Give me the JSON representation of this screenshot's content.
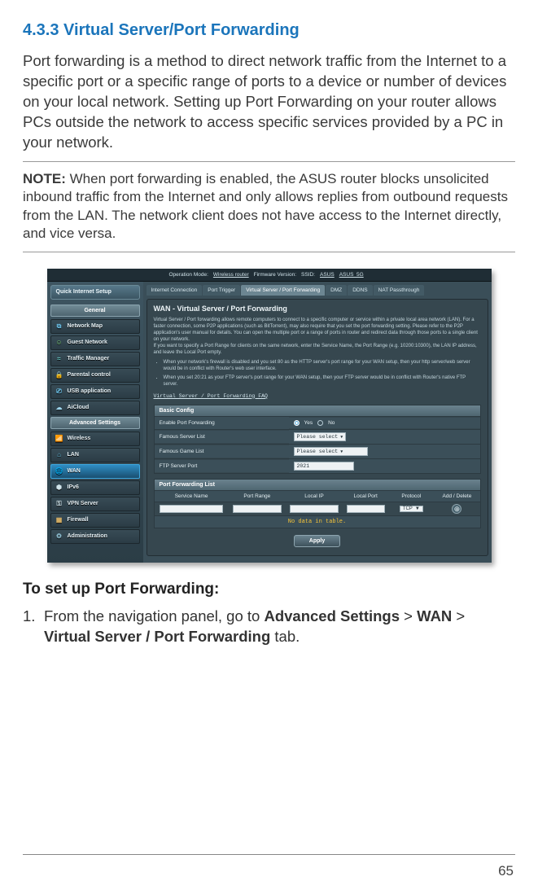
{
  "section": {
    "number": "4.3.3",
    "title": "Virtual Server/Port Forwarding"
  },
  "intro": "Port forwarding is a method to direct network traffic from the Internet to a specific port or a specific range of ports to a device or number of devices on your local network. Setting up Port Forwarding on your router allows PCs outside the network to access specific services provided by a PC in your network.",
  "note": {
    "label": "NOTE:",
    "text": " When port forwarding is enabled, the ASUS router blocks unsolicited inbound traffic from the Internet and only allows replies from outbound requests from the LAN. The network client does not have access to the Internet directly, and vice versa."
  },
  "screenshot": {
    "topbar": {
      "opmode_label": "Operation Mode:",
      "opmode_value": "Wireless router",
      "fw_label": "Firmware Version:",
      "ssid_label": "SSID:",
      "ssid1": "ASUS",
      "ssid2": "ASUS_5G"
    },
    "sidebar": {
      "quick": "Quick Internet Setup",
      "general_label": "General",
      "general_items": [
        {
          "icon": "🖧",
          "label": "Network Map",
          "color": "#6cc1e8"
        },
        {
          "icon": "👥",
          "label": "Guest Network",
          "color": "#7fd07a"
        },
        {
          "icon": "📈",
          "label": "Traffic Manager",
          "color": "#6fd3cf"
        },
        {
          "icon": "🔒",
          "label": "Parental control",
          "color": "#5aa7d6"
        },
        {
          "icon": "🔌",
          "label": "USB application",
          "color": "#6cc1e8"
        },
        {
          "icon": "☁",
          "label": "AiCloud",
          "color": "#9cd3ea"
        }
      ],
      "adv_label": "Advanced Settings",
      "adv_items": [
        {
          "icon": "📶",
          "label": "Wireless",
          "active": false,
          "color": "#cfe3ea"
        },
        {
          "icon": "🏠",
          "label": "LAN",
          "active": false,
          "color": "#63bfe0"
        },
        {
          "icon": "🌐",
          "label": "WAN",
          "active": true,
          "color": "#ffffff"
        },
        {
          "icon": "⬢",
          "label": "IPv6",
          "active": false,
          "color": "#cfe3ea"
        },
        {
          "icon": "🔐",
          "label": "VPN Server",
          "active": false,
          "color": "#cfe3ea"
        },
        {
          "icon": "🧱",
          "label": "Firewall",
          "active": false,
          "color": "#e0b86a"
        },
        {
          "icon": "⚙",
          "label": "Administration",
          "active": false,
          "color": "#9bd0e5"
        }
      ]
    },
    "tabs": [
      {
        "label": "Internet Connection",
        "active": false
      },
      {
        "label": "Port Trigger",
        "active": false
      },
      {
        "label": "Virtual Server / Port Forwarding",
        "active": true
      },
      {
        "label": "DMZ",
        "active": false
      },
      {
        "label": "DDNS",
        "active": false
      },
      {
        "label": "NAT Passthrough",
        "active": false
      }
    ],
    "panel": {
      "title": "WAN - Virtual Server / Port Forwarding",
      "desc1": "Virtual Server / Port forwarding allows remote computers to connect to a specific computer or service within a private local area network (LAN). For a faster connection, some P2P applications (such as BitTorrent), may also require that you set the port forwarding setting. Please refer to the P2P application's user manual for details. You can open the multiple port or a range of ports in router and redirect data through those ports to a single client on your network.",
      "desc2": "If you want to specify a Port Range for clients on the same network, enter the Service Name, the Port Range (e.g. 10200:10300), the LAN IP address, and leave the Local Port empty.",
      "bul1": "When your network's firewall is disabled and you set 80 as the HTTP server's port range for your WAN setup, then your http server/web server would be in conflict with Router's web user interface.",
      "bul2": "When you set 20:21 as your FTP server's port range for your WAN setup, then your FTP server would be in conflict with Router's native FTP server.",
      "faq": "Virtual Server / Port Forwarding FAQ"
    },
    "basic": {
      "head": "Basic Config",
      "rows": {
        "enable": {
          "label": "Enable Port Forwarding",
          "yes": "Yes",
          "no": "No"
        },
        "famous_server": {
          "label": "Famous Server List",
          "value": "Please select"
        },
        "famous_game": {
          "label": "Famous Game List",
          "value": "Please select"
        },
        "ftp": {
          "label": "FTP Server Port",
          "value": "2021"
        }
      }
    },
    "list": {
      "head": "Port Forwarding List",
      "cols": [
        "Service Name",
        "Port Range",
        "Local IP",
        "Local Port",
        "Protocol",
        "Add / Delete"
      ],
      "proto": "TCP",
      "nodata": "No data in table.",
      "apply": "Apply"
    }
  },
  "setup_head": "To set up Port Forwarding:",
  "step1": {
    "num": "1.",
    "pre": "From the navigation panel, go to ",
    "b1": "Advanced Settings",
    "gt1": " > ",
    "b2": "WAN",
    "gt2": " > ",
    "b3": "Virtual Server / Port Forwarding",
    "post": " tab."
  },
  "page_number": "65"
}
